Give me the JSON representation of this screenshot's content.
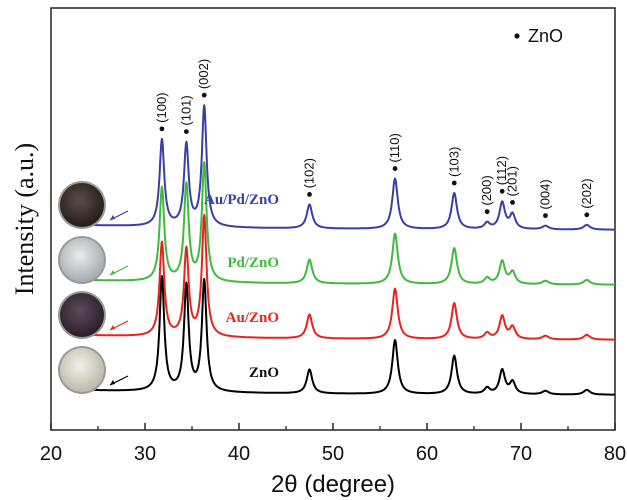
{
  "chart_data": {
    "type": "line",
    "xlabel": "2θ (degree)",
    "ylabel": "Intensity (a.u.)",
    "xlim": [
      20,
      80
    ],
    "xticks": [
      "20",
      "30",
      "40",
      "50",
      "60",
      "70",
      "80"
    ],
    "legend": {
      "marker": "•",
      "label": "ZnO",
      "placement": "top-right"
    },
    "background_offset": 0.05,
    "peaks": [
      {
        "label": "(100)",
        "pos": 31.8,
        "width": 0.3
      },
      {
        "label": "(101)",
        "pos": 34.4,
        "width": 0.3
      },
      {
        "label": "(002)",
        "pos": 36.3,
        "width": 0.3
      },
      {
        "label": "(102)",
        "pos": 47.5,
        "width": 0.35
      },
      {
        "label": "(110)",
        "pos": 56.6,
        "width": 0.35
      },
      {
        "label": "(103)",
        "pos": 62.9,
        "width": 0.35
      },
      {
        "label": "(200)",
        "pos": 66.4,
        "width": 0.35
      },
      {
        "label": "(112)",
        "pos": 68.0,
        "width": 0.35
      },
      {
        "label": "(201)",
        "pos": 69.1,
        "width": 0.35
      },
      {
        "label": "(004)",
        "pos": 72.6,
        "width": 0.4
      },
      {
        "label": "(202)",
        "pos": 77.0,
        "width": 0.4
      }
    ],
    "series": [
      {
        "name": "ZnO",
        "color": "#000000",
        "offset": 0,
        "intensities": [
          0.95,
          0.88,
          0.92,
          0.2,
          0.45,
          0.32,
          0.05,
          0.2,
          0.1,
          0.03,
          0.04
        ]
      },
      {
        "name": "Au/ZnO",
        "color": "#e8231f",
        "offset": 1,
        "intensities": [
          0.78,
          0.72,
          1.0,
          0.2,
          0.42,
          0.3,
          0.05,
          0.19,
          0.1,
          0.03,
          0.04
        ]
      },
      {
        "name": "Pd/ZnO",
        "color": "#3dbb3d",
        "offset": 2,
        "intensities": [
          0.78,
          0.8,
          0.98,
          0.2,
          0.42,
          0.3,
          0.05,
          0.19,
          0.1,
          0.03,
          0.04
        ]
      },
      {
        "name": "Au/Pd/ZnO",
        "color": "#3a3ea6",
        "offset": 3,
        "intensities": [
          0.72,
          0.68,
          1.0,
          0.2,
          0.42,
          0.3,
          0.05,
          0.22,
          0.12,
          0.03,
          0.04
        ]
      }
    ],
    "sample_photos": [
      "ZnO",
      "Au/ZnO",
      "Pd/ZnO",
      "Au/Pd/ZnO"
    ]
  }
}
